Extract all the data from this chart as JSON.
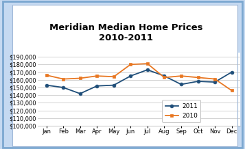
{
  "title": "Meridian Median Home Prices\n2010-2011",
  "months": [
    "Jan",
    "Feb",
    "Mar",
    "Apr",
    "May",
    "Jun",
    "Jul",
    "Aug",
    "Sep",
    "Oct",
    "Nov",
    "Dec"
  ],
  "data_2011": [
    153000,
    150000,
    142000,
    152000,
    153000,
    165000,
    173000,
    165000,
    154000,
    158000,
    157000,
    170000
  ],
  "data_2010": [
    166000,
    161000,
    162000,
    165000,
    164000,
    180000,
    181000,
    163000,
    165000,
    163000,
    161000,
    146000
  ],
  "color_2011": "#1F4E79",
  "color_2010": "#E87722",
  "ylim_min": 100000,
  "ylim_max": 195000,
  "ytick_min": 100000,
  "ytick_max": 190000,
  "ytick_step": 10000,
  "background_outer": "#C5D9F1",
  "background_inner": "#FFFFFF",
  "grid_color": "#C0C0C0",
  "title_fontsize": 9.5,
  "legend_2011": "2011",
  "legend_2010": "2010"
}
